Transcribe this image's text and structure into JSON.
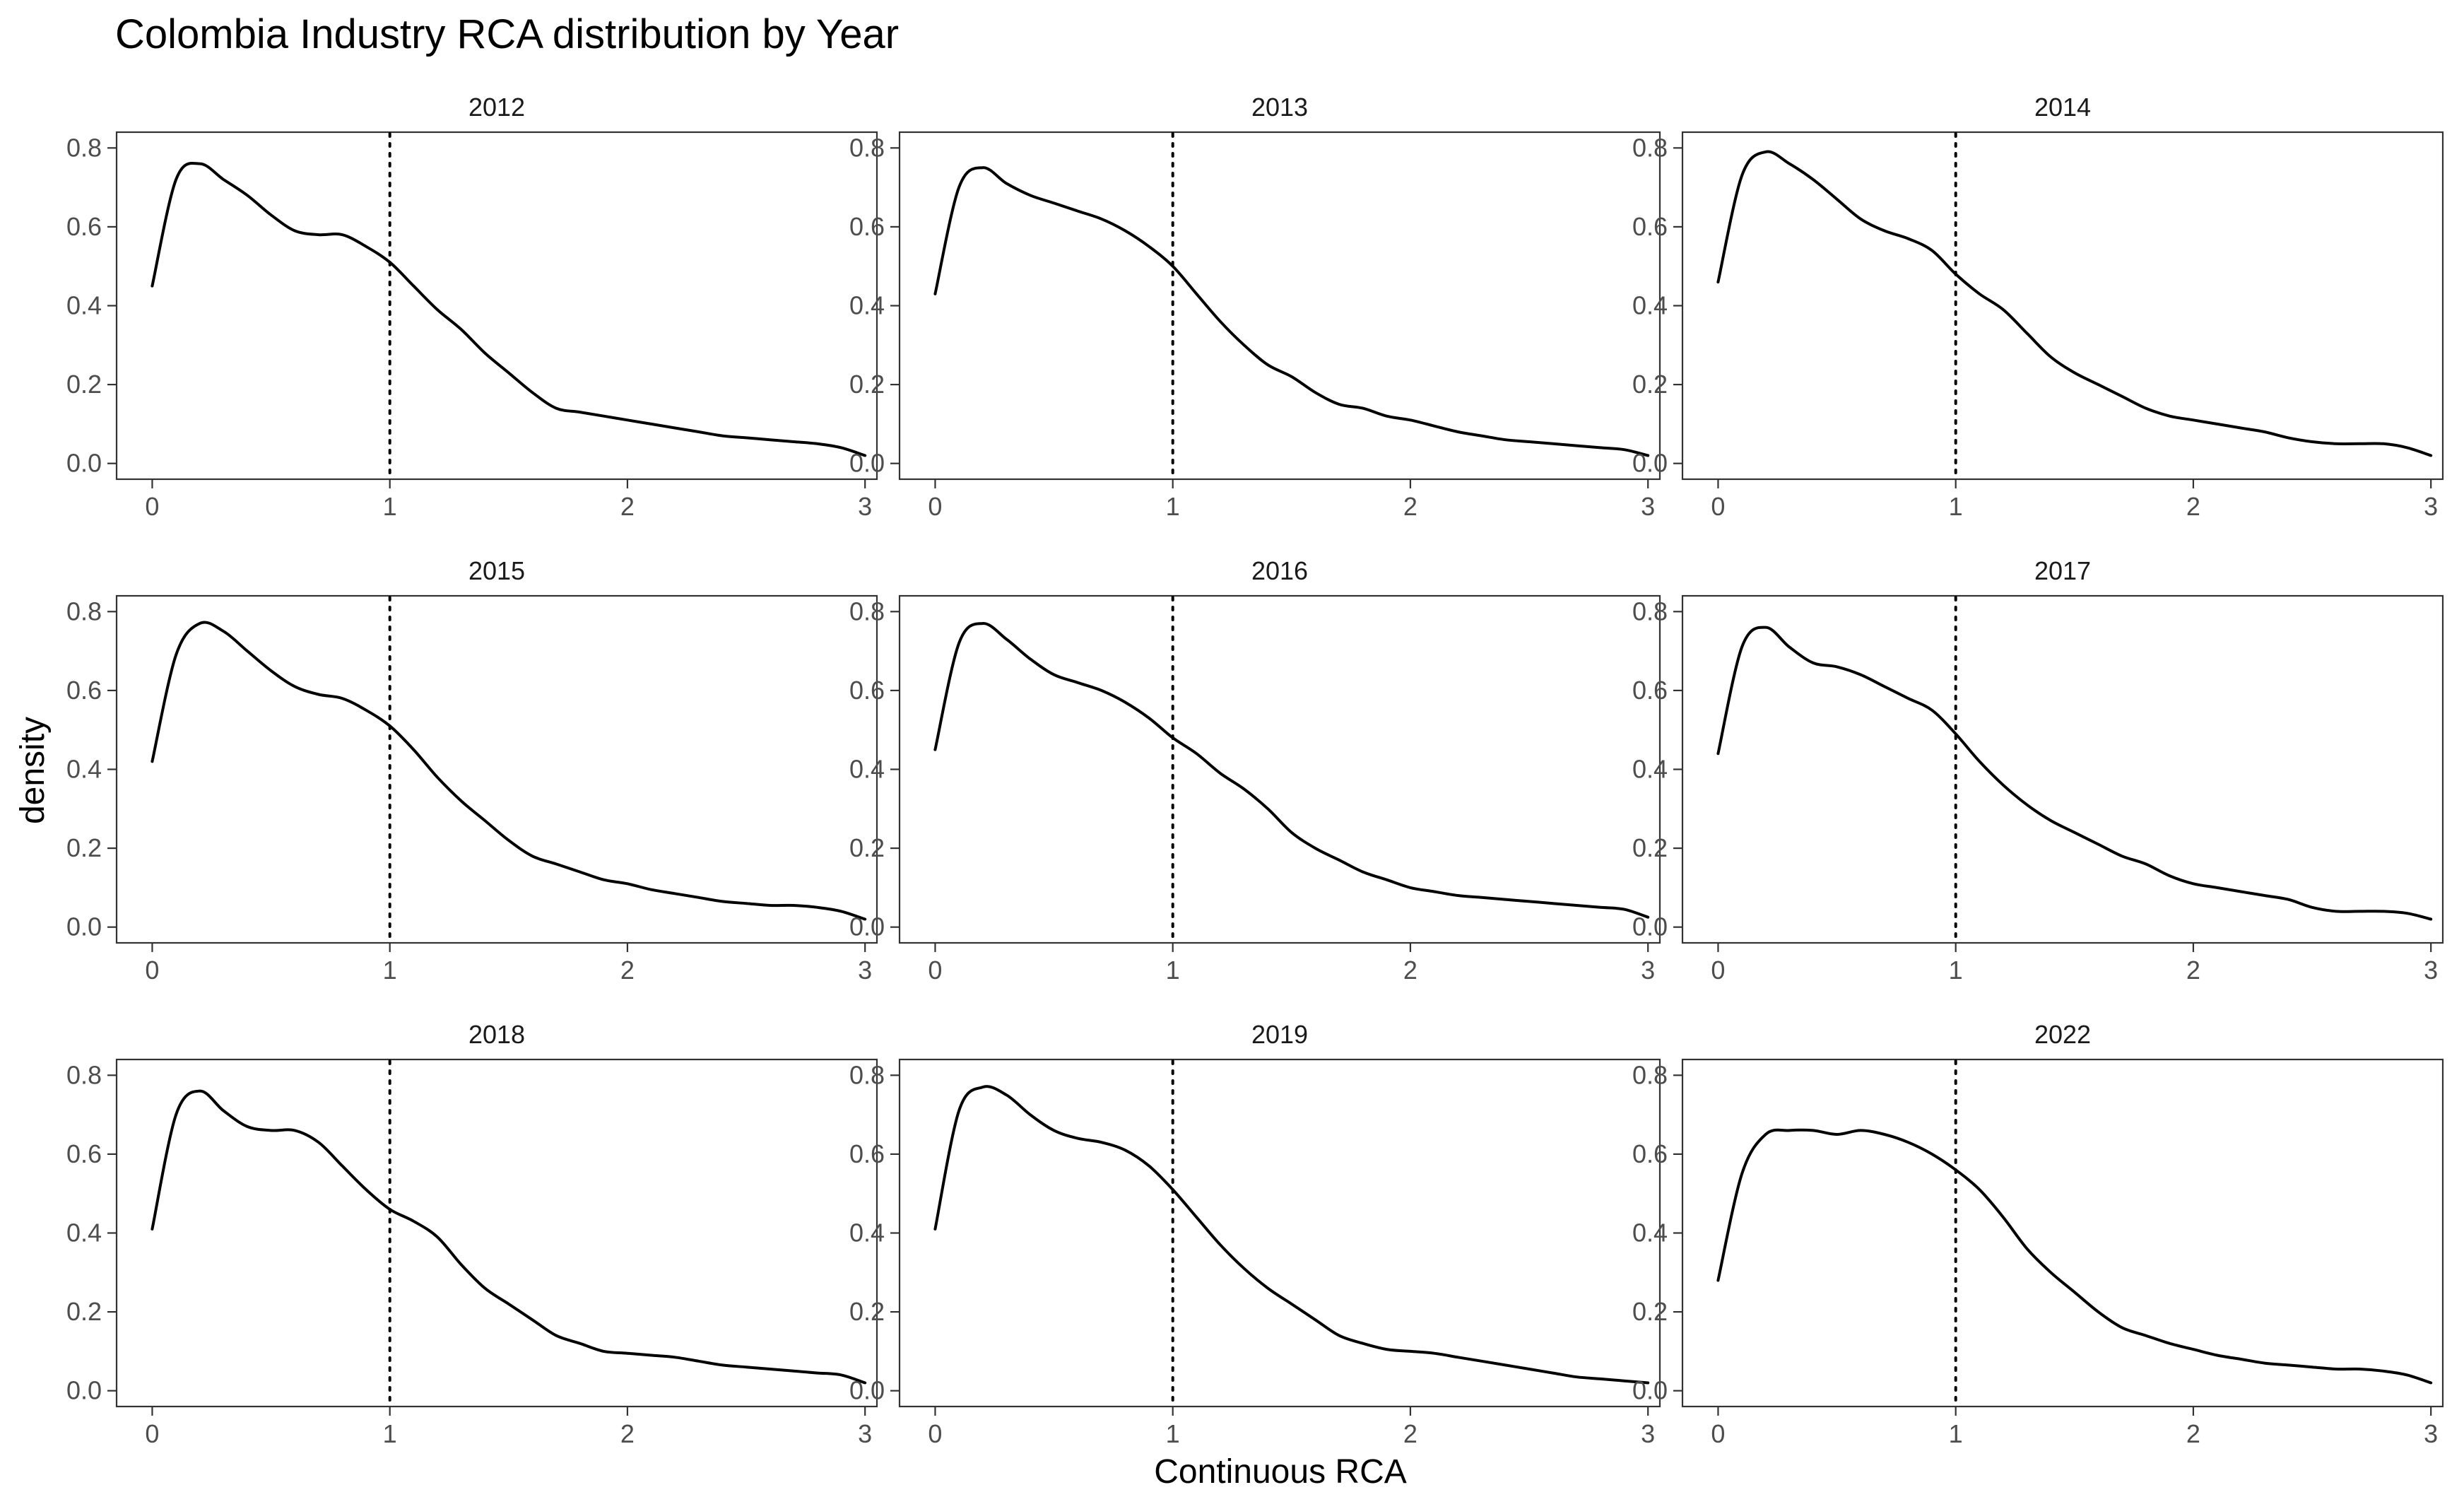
{
  "chart_data": {
    "type": "line",
    "title": "Colombia Industry RCA distribution by Year",
    "xlabel": "Continuous RCA",
    "ylabel": "density",
    "xlim": [
      -0.15,
      3.05
    ],
    "ylim": [
      -0.04,
      0.84
    ],
    "x_ticks": [
      0,
      1,
      2,
      3
    ],
    "y_ticks": [
      0.0,
      0.2,
      0.4,
      0.6,
      0.8
    ],
    "y_tick_labels": [
      "0.0",
      "0.2",
      "0.4",
      "0.6",
      "0.8"
    ],
    "grid": false,
    "reference_line": {
      "x": 1,
      "style": "dotted"
    },
    "facet_layout": {
      "rows": 3,
      "cols": 3
    },
    "x": [
      0,
      0.1,
      0.2,
      0.3,
      0.4,
      0.5,
      0.6,
      0.7,
      0.8,
      0.9,
      1.0,
      1.1,
      1.2,
      1.3,
      1.4,
      1.5,
      1.6,
      1.7,
      1.8,
      1.9,
      2.0,
      2.1,
      2.2,
      2.3,
      2.4,
      2.5,
      2.6,
      2.7,
      2.8,
      2.9,
      3.0
    ],
    "series": [
      {
        "name": "2012",
        "values": [
          0.45,
          0.72,
          0.76,
          0.72,
          0.68,
          0.63,
          0.59,
          0.58,
          0.58,
          0.55,
          0.51,
          0.45,
          0.39,
          0.34,
          0.28,
          0.23,
          0.18,
          0.14,
          0.13,
          0.12,
          0.11,
          0.1,
          0.09,
          0.08,
          0.07,
          0.065,
          0.06,
          0.055,
          0.05,
          0.04,
          0.02
        ]
      },
      {
        "name": "2013",
        "values": [
          0.43,
          0.7,
          0.75,
          0.71,
          0.68,
          0.66,
          0.64,
          0.62,
          0.59,
          0.55,
          0.5,
          0.43,
          0.36,
          0.3,
          0.25,
          0.22,
          0.18,
          0.15,
          0.14,
          0.12,
          0.11,
          0.095,
          0.08,
          0.07,
          0.06,
          0.055,
          0.05,
          0.045,
          0.04,
          0.035,
          0.02
        ]
      },
      {
        "name": "2014",
        "values": [
          0.46,
          0.73,
          0.79,
          0.76,
          0.72,
          0.67,
          0.62,
          0.59,
          0.57,
          0.54,
          0.48,
          0.43,
          0.39,
          0.33,
          0.27,
          0.23,
          0.2,
          0.17,
          0.14,
          0.12,
          0.11,
          0.1,
          0.09,
          0.08,
          0.065,
          0.055,
          0.05,
          0.05,
          0.05,
          0.04,
          0.02
        ]
      },
      {
        "name": "2015",
        "values": [
          0.42,
          0.69,
          0.77,
          0.75,
          0.7,
          0.65,
          0.61,
          0.59,
          0.58,
          0.55,
          0.51,
          0.45,
          0.38,
          0.32,
          0.27,
          0.22,
          0.18,
          0.16,
          0.14,
          0.12,
          0.11,
          0.095,
          0.085,
          0.075,
          0.065,
          0.06,
          0.055,
          0.055,
          0.05,
          0.04,
          0.02
        ]
      },
      {
        "name": "2016",
        "values": [
          0.45,
          0.72,
          0.77,
          0.73,
          0.68,
          0.64,
          0.62,
          0.6,
          0.57,
          0.53,
          0.48,
          0.44,
          0.39,
          0.35,
          0.3,
          0.24,
          0.2,
          0.17,
          0.14,
          0.12,
          0.1,
          0.09,
          0.08,
          0.075,
          0.07,
          0.065,
          0.06,
          0.055,
          0.05,
          0.045,
          0.025
        ]
      },
      {
        "name": "2017",
        "values": [
          0.44,
          0.71,
          0.76,
          0.71,
          0.67,
          0.66,
          0.64,
          0.61,
          0.58,
          0.55,
          0.49,
          0.42,
          0.36,
          0.31,
          0.27,
          0.24,
          0.21,
          0.18,
          0.16,
          0.13,
          0.11,
          0.1,
          0.09,
          0.08,
          0.07,
          0.05,
          0.04,
          0.04,
          0.04,
          0.035,
          0.02
        ]
      },
      {
        "name": "2018",
        "values": [
          0.41,
          0.7,
          0.76,
          0.71,
          0.67,
          0.66,
          0.66,
          0.63,
          0.57,
          0.51,
          0.46,
          0.43,
          0.39,
          0.32,
          0.26,
          0.22,
          0.18,
          0.14,
          0.12,
          0.1,
          0.095,
          0.09,
          0.085,
          0.075,
          0.065,
          0.06,
          0.055,
          0.05,
          0.045,
          0.04,
          0.02
        ]
      },
      {
        "name": "2019",
        "values": [
          0.41,
          0.71,
          0.77,
          0.75,
          0.7,
          0.66,
          0.64,
          0.63,
          0.61,
          0.57,
          0.51,
          0.44,
          0.37,
          0.31,
          0.26,
          0.22,
          0.18,
          0.14,
          0.12,
          0.105,
          0.1,
          0.095,
          0.085,
          0.075,
          0.065,
          0.055,
          0.045,
          0.035,
          0.03,
          0.025,
          0.02
        ]
      },
      {
        "name": "2022",
        "values": [
          0.28,
          0.55,
          0.65,
          0.66,
          0.66,
          0.65,
          0.66,
          0.65,
          0.63,
          0.6,
          0.56,
          0.51,
          0.44,
          0.36,
          0.3,
          0.25,
          0.2,
          0.16,
          0.14,
          0.12,
          0.105,
          0.09,
          0.08,
          0.07,
          0.065,
          0.06,
          0.055,
          0.055,
          0.05,
          0.04,
          0.02
        ]
      }
    ]
  }
}
